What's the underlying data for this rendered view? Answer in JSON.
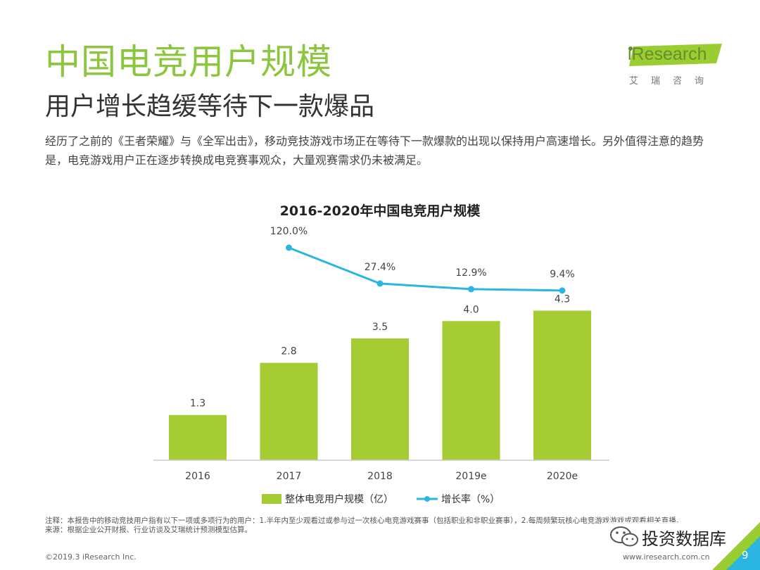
{
  "header": {
    "title": "中国电竞用户规模",
    "subtitle": "用户增长趋缓等待下一款爆品",
    "intro": "经历了之前的《王者荣耀》与《全军出击》，移动竞技游戏市场正在等待下一款爆款的出现以保持用户高速增长。另外值得注意的趋势是，电竞游戏用户正在逐步转换成电竞赛事观众，大量观赛需求仍未被满足。"
  },
  "logo": {
    "word": "iResearch",
    "cn": "艾瑞咨询"
  },
  "colors": {
    "green": "#8cc63f",
    "bar": "#a6cc33",
    "line": "#2ab6e0",
    "accent": "#9acd32"
  },
  "chart_data": {
    "type": "bar",
    "title": "2016-2020年中国电竞用户规模",
    "categories": [
      "2016",
      "2017",
      "2018",
      "2019e",
      "2020e"
    ],
    "series": [
      {
        "name": "整体电竞用户规模（亿）",
        "type": "bar",
        "values": [
          1.3,
          2.8,
          3.5,
          4.0,
          4.3
        ],
        "labels": [
          "1.3",
          "2.8",
          "3.5",
          "4.0",
          "4.3"
        ]
      },
      {
        "name": "增长率（%）",
        "type": "line",
        "values": [
          null,
          120.0,
          27.4,
          12.9,
          9.4
        ],
        "labels": [
          null,
          "120.0%",
          "27.4%",
          "12.9%",
          "9.4%"
        ]
      }
    ],
    "ylim": [
      0,
      7
    ],
    "y2lim": [
      0,
      120
    ],
    "legend": "bottom"
  },
  "notes": {
    "note": "注释：本报告中的移动竞技用户指有以下一项或多项行为的用户：1.半年内至少观看过或参与过一次核心电竞游戏赛事（包括职业和非职业赛事），2.每周频繁玩核心电竞游戏游戏或观看相关直播。",
    "source": "来源：根据企业公开财报、行业访谈及艾瑞统计预测模型估算。"
  },
  "footer": {
    "copyright": "©2019.3 iResearch Inc.",
    "url": "www.iresearch.com.cn",
    "watermark": "投资数据库",
    "page": "9"
  }
}
